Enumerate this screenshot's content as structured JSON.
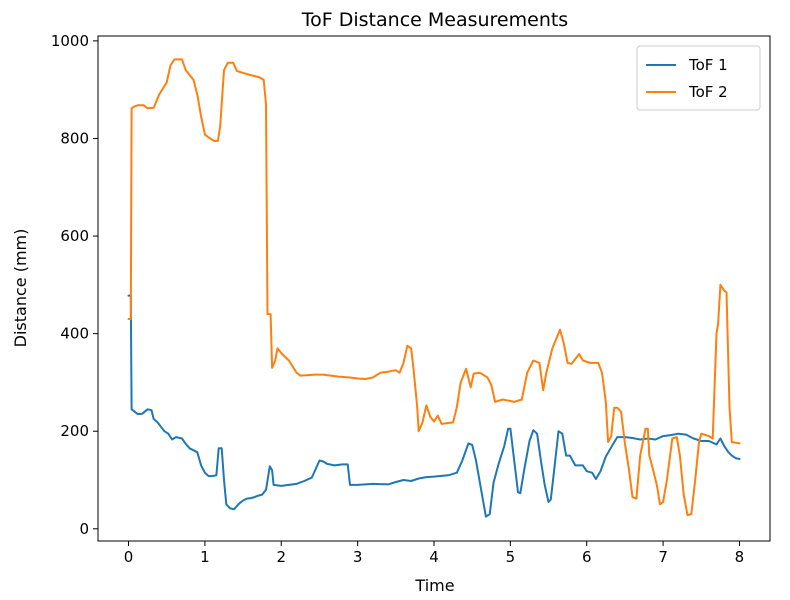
{
  "chart_data": {
    "type": "line",
    "title": "ToF Distance Measurements",
    "xlabel": "Time",
    "ylabel": "Distance (mm)",
    "xlim": [
      -0.4,
      8.4
    ],
    "ylim": [
      -25,
      1010
    ],
    "xticks": [
      "0",
      "1",
      "2",
      "3",
      "4",
      "5",
      "6",
      "7",
      "8"
    ],
    "yticks": [
      "0",
      "200",
      "400",
      "600",
      "800",
      "1000"
    ],
    "grid": false,
    "legend": "top-right",
    "series": [
      {
        "name": "ToF 1",
        "color": "#1f77b4",
        "points": [
          [
            0.0,
            478
          ],
          [
            0.03,
            478
          ],
          [
            0.04,
            245
          ],
          [
            0.08,
            240
          ],
          [
            0.12,
            235
          ],
          [
            0.18,
            236
          ],
          [
            0.25,
            245
          ],
          [
            0.3,
            243
          ],
          [
            0.33,
            225
          ],
          [
            0.38,
            218
          ],
          [
            0.42,
            210
          ],
          [
            0.47,
            200
          ],
          [
            0.52,
            195
          ],
          [
            0.57,
            183
          ],
          [
            0.62,
            188
          ],
          [
            0.7,
            185
          ],
          [
            0.75,
            174
          ],
          [
            0.8,
            165
          ],
          [
            0.9,
            157
          ],
          [
            0.95,
            130
          ],
          [
            1.0,
            115
          ],
          [
            1.05,
            108
          ],
          [
            1.1,
            108
          ],
          [
            1.15,
            110
          ],
          [
            1.18,
            165
          ],
          [
            1.22,
            165
          ],
          [
            1.25,
            100
          ],
          [
            1.28,
            50
          ],
          [
            1.33,
            42
          ],
          [
            1.38,
            40
          ],
          [
            1.45,
            52
          ],
          [
            1.5,
            58
          ],
          [
            1.55,
            62
          ],
          [
            1.6,
            63
          ],
          [
            1.65,
            65
          ],
          [
            1.7,
            68
          ],
          [
            1.75,
            70
          ],
          [
            1.8,
            80
          ],
          [
            1.85,
            128
          ],
          [
            1.88,
            120
          ],
          [
            1.9,
            90
          ],
          [
            2.0,
            88
          ],
          [
            2.1,
            90
          ],
          [
            2.2,
            92
          ],
          [
            2.3,
            98
          ],
          [
            2.4,
            105
          ],
          [
            2.5,
            140
          ],
          [
            2.55,
            138
          ],
          [
            2.6,
            133
          ],
          [
            2.7,
            130
          ],
          [
            2.8,
            132
          ],
          [
            2.87,
            132
          ],
          [
            2.9,
            90
          ],
          [
            3.0,
            90
          ],
          [
            3.2,
            92
          ],
          [
            3.4,
            91
          ],
          [
            3.5,
            96
          ],
          [
            3.6,
            100
          ],
          [
            3.7,
            98
          ],
          [
            3.8,
            103
          ],
          [
            3.9,
            106
          ],
          [
            4.0,
            107
          ],
          [
            4.2,
            110
          ],
          [
            4.3,
            115
          ],
          [
            4.37,
            140
          ],
          [
            4.45,
            175
          ],
          [
            4.5,
            172
          ],
          [
            4.55,
            140
          ],
          [
            4.62,
            78
          ],
          [
            4.68,
            25
          ],
          [
            4.73,
            30
          ],
          [
            4.78,
            95
          ],
          [
            4.85,
            135
          ],
          [
            4.92,
            170
          ],
          [
            4.97,
            205
          ],
          [
            5.0,
            205
          ],
          [
            5.05,
            140
          ],
          [
            5.1,
            75
          ],
          [
            5.13,
            73
          ],
          [
            5.18,
            120
          ],
          [
            5.25,
            180
          ],
          [
            5.3,
            202
          ],
          [
            5.35,
            195
          ],
          [
            5.4,
            140
          ],
          [
            5.45,
            90
          ],
          [
            5.5,
            55
          ],
          [
            5.53,
            60
          ],
          [
            5.58,
            130
          ],
          [
            5.63,
            200
          ],
          [
            5.68,
            195
          ],
          [
            5.73,
            150
          ],
          [
            5.78,
            150
          ],
          [
            5.85,
            130
          ],
          [
            5.95,
            130
          ],
          [
            6.0,
            118
          ],
          [
            6.07,
            115
          ],
          [
            6.12,
            102
          ],
          [
            6.18,
            118
          ],
          [
            6.25,
            148
          ],
          [
            6.35,
            175
          ],
          [
            6.4,
            188
          ],
          [
            6.5,
            188
          ],
          [
            6.6,
            186
          ],
          [
            6.7,
            183
          ],
          [
            6.8,
            185
          ],
          [
            6.9,
            183
          ],
          [
            7.0,
            190
          ],
          [
            7.1,
            192
          ],
          [
            7.2,
            195
          ],
          [
            7.3,
            193
          ],
          [
            7.4,
            185
          ],
          [
            7.5,
            180
          ],
          [
            7.6,
            180
          ],
          [
            7.7,
            173
          ],
          [
            7.75,
            185
          ],
          [
            7.8,
            170
          ],
          [
            7.85,
            158
          ],
          [
            7.9,
            150
          ],
          [
            7.95,
            145
          ],
          [
            8.0,
            143
          ]
        ]
      },
      {
        "name": "ToF 2",
        "color": "#ff7f0e",
        "points": [
          [
            0.0,
            430
          ],
          [
            0.03,
            430
          ],
          [
            0.04,
            862
          ],
          [
            0.08,
            866
          ],
          [
            0.12,
            868
          ],
          [
            0.2,
            868
          ],
          [
            0.25,
            862
          ],
          [
            0.33,
            863
          ],
          [
            0.4,
            890
          ],
          [
            0.5,
            915
          ],
          [
            0.55,
            950
          ],
          [
            0.6,
            962
          ],
          [
            0.7,
            962
          ],
          [
            0.75,
            940
          ],
          [
            0.85,
            920
          ],
          [
            0.9,
            890
          ],
          [
            0.95,
            845
          ],
          [
            1.0,
            808
          ],
          [
            1.05,
            802
          ],
          [
            1.12,
            795
          ],
          [
            1.17,
            795
          ],
          [
            1.2,
            825
          ],
          [
            1.25,
            940
          ],
          [
            1.3,
            955
          ],
          [
            1.37,
            955
          ],
          [
            1.42,
            938
          ],
          [
            1.55,
            932
          ],
          [
            1.65,
            928
          ],
          [
            1.72,
            925
          ],
          [
            1.77,
            920
          ],
          [
            1.8,
            870
          ],
          [
            1.82,
            440
          ],
          [
            1.86,
            440
          ],
          [
            1.88,
            330
          ],
          [
            1.92,
            345
          ],
          [
            1.95,
            370
          ],
          [
            2.0,
            360
          ],
          [
            2.1,
            345
          ],
          [
            2.2,
            320
          ],
          [
            2.25,
            314
          ],
          [
            2.35,
            315
          ],
          [
            2.45,
            316
          ],
          [
            2.55,
            316
          ],
          [
            2.65,
            314
          ],
          [
            2.75,
            312
          ],
          [
            2.9,
            310
          ],
          [
            3.0,
            308
          ],
          [
            3.1,
            307
          ],
          [
            3.2,
            310
          ],
          [
            3.3,
            320
          ],
          [
            3.4,
            322
          ],
          [
            3.5,
            325
          ],
          [
            3.55,
            320
          ],
          [
            3.6,
            340
          ],
          [
            3.65,
            375
          ],
          [
            3.7,
            370
          ],
          [
            3.73,
            330
          ],
          [
            3.78,
            250
          ],
          [
            3.8,
            200
          ],
          [
            3.85,
            218
          ],
          [
            3.9,
            253
          ],
          [
            3.95,
            230
          ],
          [
            4.0,
            220
          ],
          [
            4.05,
            232
          ],
          [
            4.1,
            215
          ],
          [
            4.25,
            218
          ],
          [
            4.3,
            250
          ],
          [
            4.35,
            300
          ],
          [
            4.42,
            328
          ],
          [
            4.48,
            290
          ],
          [
            4.52,
            318
          ],
          [
            4.6,
            320
          ],
          [
            4.7,
            310
          ],
          [
            4.75,
            295
          ],
          [
            4.8,
            260
          ],
          [
            4.9,
            265
          ],
          [
            5.0,
            262
          ],
          [
            5.05,
            260
          ],
          [
            5.15,
            265
          ],
          [
            5.22,
            320
          ],
          [
            5.3,
            345
          ],
          [
            5.38,
            340
          ],
          [
            5.43,
            284
          ],
          [
            5.47,
            320
          ],
          [
            5.55,
            370
          ],
          [
            5.65,
            408
          ],
          [
            5.7,
            380
          ],
          [
            5.75,
            340
          ],
          [
            5.8,
            338
          ],
          [
            5.9,
            358
          ],
          [
            5.95,
            345
          ],
          [
            6.05,
            340
          ],
          [
            6.15,
            340
          ],
          [
            6.2,
            320
          ],
          [
            6.25,
            260
          ],
          [
            6.28,
            178
          ],
          [
            6.32,
            190
          ],
          [
            6.36,
            248
          ],
          [
            6.4,
            248
          ],
          [
            6.45,
            240
          ],
          [
            6.5,
            175
          ],
          [
            6.55,
            125
          ],
          [
            6.6,
            65
          ],
          [
            6.65,
            62
          ],
          [
            6.7,
            150
          ],
          [
            6.77,
            205
          ],
          [
            6.8,
            205
          ],
          [
            6.82,
            150
          ],
          [
            6.87,
            120
          ],
          [
            6.92,
            88
          ],
          [
            6.96,
            50
          ],
          [
            7.0,
            55
          ],
          [
            7.05,
            100
          ],
          [
            7.12,
            185
          ],
          [
            7.18,
            188
          ],
          [
            7.22,
            150
          ],
          [
            7.27,
            70
          ],
          [
            7.32,
            28
          ],
          [
            7.37,
            30
          ],
          [
            7.42,
            100
          ],
          [
            7.47,
            178
          ],
          [
            7.5,
            195
          ],
          [
            7.6,
            190
          ],
          [
            7.65,
            185
          ],
          [
            7.7,
            400
          ],
          [
            7.72,
            420
          ],
          [
            7.75,
            500
          ],
          [
            7.8,
            488
          ],
          [
            7.83,
            485
          ],
          [
            7.87,
            250
          ],
          [
            7.9,
            178
          ],
          [
            8.0,
            175
          ]
        ]
      }
    ]
  }
}
